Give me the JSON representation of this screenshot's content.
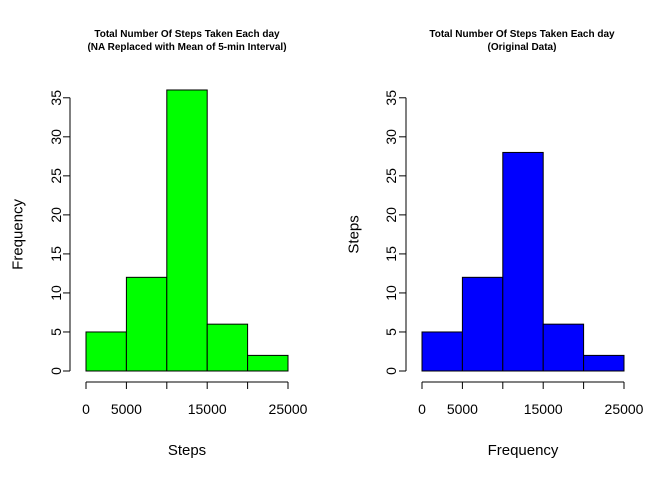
{
  "chart_data": [
    {
      "type": "bar",
      "title_lines": [
        "Total Number Of Steps Taken Each day",
        "(NA Replaced with Mean of 5-min Interval)"
      ],
      "xlabel": "Steps",
      "ylabel": "Frequency",
      "bins": [
        [
          0,
          5000
        ],
        [
          5000,
          10000
        ],
        [
          10000,
          15000
        ],
        [
          15000,
          20000
        ],
        [
          20000,
          25000
        ]
      ],
      "values": [
        5,
        12,
        36,
        6,
        2
      ],
      "xticks": [
        0,
        5000,
        15000,
        25000
      ],
      "yticks": [
        0,
        5,
        10,
        15,
        20,
        25,
        30,
        35
      ],
      "xlim": [
        0,
        25000
      ],
      "ylim": [
        0,
        36
      ],
      "bar_color": "#00ff00",
      "grid": false
    },
    {
      "type": "bar",
      "title_lines": [
        "Total Number Of Steps Taken Each day",
        "(Original Data)"
      ],
      "xlabel": "Frequency",
      "ylabel": "Steps",
      "bins": [
        [
          0,
          5000
        ],
        [
          5000,
          10000
        ],
        [
          10000,
          15000
        ],
        [
          15000,
          20000
        ],
        [
          20000,
          25000
        ]
      ],
      "values": [
        5,
        12,
        28,
        6,
        2
      ],
      "xticks": [
        0,
        5000,
        15000,
        25000
      ],
      "yticks": [
        0,
        5,
        10,
        15,
        20,
        25,
        30,
        35
      ],
      "xlim": [
        0,
        25000
      ],
      "ylim": [
        0,
        36
      ],
      "bar_color": "#0000ff",
      "grid": false
    }
  ]
}
